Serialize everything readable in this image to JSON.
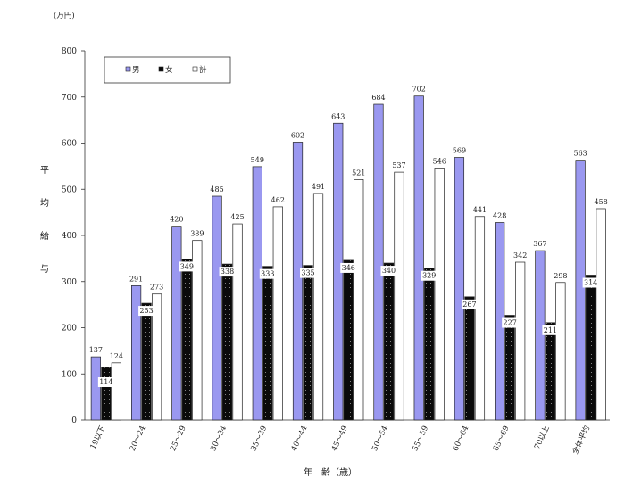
{
  "chart_data": {
    "type": "bar",
    "title": "",
    "unit_label": "(万円)",
    "ylabel": "平均給与",
    "xlabel": "年　齢（歳）",
    "ylim": [
      0,
      800
    ],
    "yticks": [
      0,
      100,
      200,
      300,
      400,
      500,
      600,
      700,
      800
    ],
    "grid": false,
    "legend_position": "top-left",
    "categories": [
      "19以下",
      "20～24",
      "25～29",
      "30～34",
      "35～39",
      "40～44",
      "45～49",
      "50～54",
      "55～59",
      "60～64",
      "65～69",
      "70以上",
      "全体平均"
    ],
    "series": [
      {
        "name": "男",
        "color": "#9a98f0",
        "values": [
          137,
          291,
          420,
          485,
          549,
          602,
          643,
          684,
          702,
          569,
          428,
          367,
          563
        ]
      },
      {
        "name": "女",
        "color": "#0a0a0a",
        "values": [
          114,
          253,
          349,
          338,
          333,
          335,
          346,
          340,
          329,
          267,
          227,
          211,
          314
        ]
      },
      {
        "name": "計",
        "color": "#ffffff",
        "values": [
          124,
          273,
          389,
          425,
          462,
          491,
          521,
          537,
          546,
          441,
          342,
          298,
          458
        ]
      }
    ]
  }
}
